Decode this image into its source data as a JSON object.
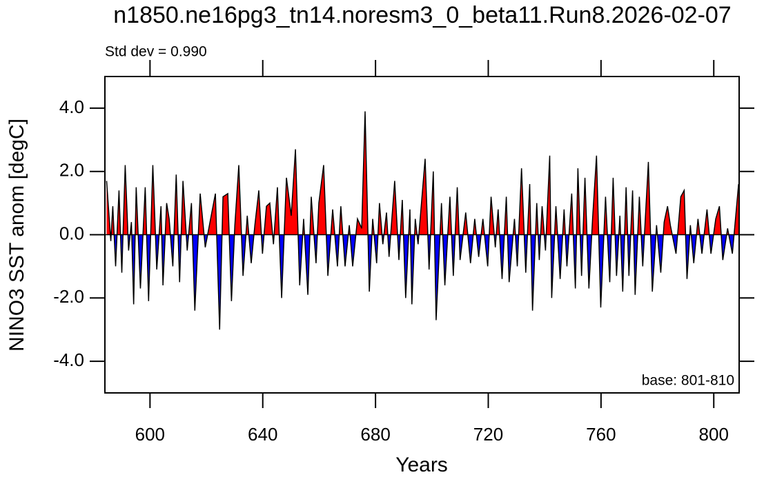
{
  "chart_data": {
    "type": "line",
    "title": "n1850.ne16pg3_tn14.noresm3_0_beta11.Run8.2026-02-07",
    "subtitle": "Std dev = 0.990",
    "annotation": "base: 801-810",
    "xlabel": "Years",
    "ylabel": "NINO3 SST anom [degC]",
    "color": "#000000",
    "fill_above": "#ff0000",
    "fill_below": "#0000ff",
    "xlim": [
      584,
      809
    ],
    "xticks": [
      600,
      640,
      680,
      720,
      760,
      800
    ],
    "ylim": [
      -5,
      5
    ],
    "yticks": [
      {
        "value": -4,
        "label": "-4.0"
      },
      {
        "value": -2,
        "label": "-2.0"
      },
      {
        "value": 0,
        "label": "0.0"
      },
      {
        "value": 2,
        "label": "2.0"
      },
      {
        "value": 4,
        "label": "4.0"
      }
    ],
    "x": [
      584.6,
      586.1,
      586.8,
      587.8,
      589.0,
      590.0,
      591.2,
      592.4,
      593.4,
      594.2,
      595.1,
      596.6,
      598.3,
      599.5,
      601.0,
      602.4,
      603.9,
      604.6,
      605.9,
      606.8,
      608.1,
      609.3,
      610.5,
      611.7,
      613.2,
      614.7,
      615.9,
      617.8,
      619.6,
      621.5,
      623.2,
      624.7,
      625.9,
      627.6,
      628.9,
      630.1,
      631.5,
      633.0,
      634.5,
      635.9,
      637.2,
      638.6,
      639.9,
      641.3,
      642.5,
      643.8,
      645.2,
      646.7,
      648.4,
      650.1,
      651.6,
      653.1,
      654.5,
      656.0,
      657.2,
      658.9,
      659.9,
      661.6,
      663.1,
      664.8,
      666.5,
      667.7,
      669.2,
      670.7,
      671.9,
      673.6,
      675.1,
      676.3,
      677.8,
      679.0,
      680.4,
      681.4,
      682.6,
      683.9,
      684.8,
      686.8,
      688.3,
      689.5,
      690.7,
      692.2,
      692.9,
      694.1,
      695.1,
      697.6,
      699.0,
      700.5,
      701.5,
      703.4,
      704.6,
      706.4,
      707.6,
      709.0,
      710.0,
      712.0,
      713.7,
      715.2,
      716.6,
      718.1,
      719.8,
      721.0,
      722.5,
      723.5,
      724.9,
      726.4,
      727.4,
      729.3,
      730.3,
      731.8,
      733.3,
      734.7,
      735.7,
      737.2,
      738.1,
      739.1,
      740.3,
      741.8,
      742.5,
      744.0,
      745.5,
      746.9,
      747.9,
      749.6,
      750.9,
      751.8,
      753.1,
      754.3,
      755.7,
      757.0,
      758.4,
      759.9,
      761.6,
      763.1,
      764.3,
      765.5,
      766.7,
      767.7,
      768.9,
      769.9,
      771.2,
      772.1,
      773.6,
      774.8,
      776.8,
      778.2,
      779.7,
      781.2,
      782.4,
      783.6,
      784.6,
      786.6,
      788.3,
      789.5,
      790.5,
      791.7,
      792.9,
      794.4,
      795.8,
      797.6,
      799.0,
      800.7,
      802.0,
      803.2,
      804.9,
      806.6,
      808.8
    ],
    "values": [
      1.7,
      -0.2,
      0.9,
      -1.0,
      1.4,
      -1.2,
      2.2,
      -0.5,
      0.4,
      -2.2,
      1.5,
      -1.7,
      1.5,
      -2.1,
      2.2,
      -1.1,
      0.9,
      -1.6,
      1.0,
      0.5,
      -1.0,
      1.9,
      -1.5,
      1.7,
      -0.5,
      1.0,
      -2.4,
      1.3,
      -0.4,
      0.5,
      1.3,
      -3.0,
      1.2,
      1.3,
      -2.1,
      0.3,
      2.2,
      -1.3,
      0.6,
      -0.9,
      0.3,
      1.4,
      -0.6,
      0.9,
      1.0,
      -0.3,
      1.5,
      -2.0,
      1.8,
      0.6,
      2.7,
      -1.6,
      0.5,
      -1.9,
      1.2,
      -0.9,
      1.0,
      2.2,
      -1.3,
      0.8,
      -1.0,
      0.9,
      -1.0,
      0.3,
      -1.0,
      0.5,
      0.2,
      3.9,
      -1.8,
      0.5,
      -0.9,
      1.0,
      -0.3,
      0.7,
      -0.7,
      1.7,
      -0.8,
      1.1,
      -2.0,
      0.8,
      -2.2,
      0.5,
      -0.3,
      2.4,
      -1.1,
      2.0,
      -2.7,
      1.0,
      -1.6,
      1.2,
      -1.3,
      1.5,
      -0.8,
      0.7,
      -0.9,
      0.5,
      -0.7,
      0.5,
      -1.0,
      1.2,
      -0.4,
      0.8,
      -1.4,
      1.2,
      -1.5,
      0.5,
      -1.0,
      2.1,
      -1.2,
      1.6,
      -2.4,
      1.0,
      -0.8,
      0.9,
      -0.5,
      2.5,
      -2.0,
      0.9,
      -1.4,
      0.8,
      -1.0,
      1.3,
      -1.7,
      2.1,
      -1.3,
      1.8,
      -1.7,
      0.5,
      2.5,
      -2.3,
      1.2,
      -1.5,
      1.8,
      -1.3,
      0.6,
      -1.8,
      1.5,
      -1.3,
      1.4,
      -1.9,
      1.2,
      -1.0,
      2.3,
      -1.8,
      0.3,
      -1.2,
      0.4,
      0.9,
      0.3,
      -0.6,
      1.2,
      1.4,
      -1.4,
      0.3,
      -0.9,
      0.5,
      -0.6,
      0.8,
      -0.6,
      0.5,
      0.9,
      -0.8,
      0.2,
      -0.6,
      1.6
    ]
  }
}
